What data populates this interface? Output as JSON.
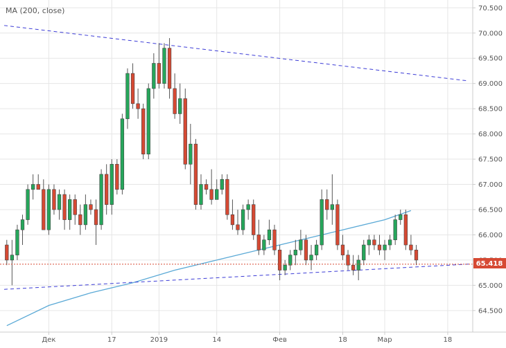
{
  "chart_data": {
    "type": "candlestick",
    "indicator_label": "MA (200, close)",
    "y_ticks": [
      "64.500",
      "65.000",
      "65.500",
      "66.000",
      "66.500",
      "67.000",
      "67.500",
      "68.000",
      "68.500",
      "69.000",
      "69.500",
      "70.000",
      "70.500"
    ],
    "ylim": [
      64.1,
      70.6
    ],
    "x_ticks": [
      {
        "label": "Дек",
        "bar": 8
      },
      {
        "label": "17",
        "bar": 20
      },
      {
        "label": "2019",
        "bar": 29
      },
      {
        "label": "14",
        "bar": 40
      },
      {
        "label": "Фев",
        "bar": 52
      },
      {
        "label": "18",
        "bar": 64
      },
      {
        "label": "Мар",
        "bar": 72
      },
      {
        "label": "18",
        "bar": 84
      }
    ],
    "last_price": "65.418",
    "last_price_value": 65.418,
    "colors": {
      "up": "#26a65b",
      "down": "#d64933",
      "ma": "#5aa9d6",
      "trend": "#3b3bd6",
      "price_line": "#d64933",
      "grid": "#e6e6e6"
    },
    "ohlc": [
      [
        65.8,
        65.9,
        65.4,
        65.5
      ],
      [
        65.5,
        65.9,
        65.0,
        65.6
      ],
      [
        65.6,
        66.2,
        65.5,
        66.1
      ],
      [
        66.1,
        66.4,
        65.8,
        66.3
      ],
      [
        66.3,
        67.0,
        66.2,
        66.9
      ],
      [
        66.9,
        67.2,
        66.7,
        67.0
      ],
      [
        67.0,
        67.2,
        66.9,
        66.9
      ],
      [
        66.9,
        67.1,
        66.1,
        66.1
      ],
      [
        66.1,
        67.0,
        66.0,
        66.9
      ],
      [
        66.9,
        67.0,
        66.4,
        66.5
      ],
      [
        66.5,
        66.9,
        66.3,
        66.8
      ],
      [
        66.8,
        66.9,
        66.1,
        66.3
      ],
      [
        66.3,
        66.8,
        66.1,
        66.7
      ],
      [
        66.7,
        66.8,
        66.2,
        66.4
      ],
      [
        66.4,
        66.6,
        66.0,
        66.2
      ],
      [
        66.2,
        66.8,
        66.1,
        66.6
      ],
      [
        66.6,
        66.7,
        66.4,
        66.5
      ],
      [
        66.5,
        66.7,
        65.8,
        66.2
      ],
      [
        66.2,
        67.3,
        66.1,
        67.2
      ],
      [
        67.2,
        67.4,
        66.4,
        66.6
      ],
      [
        66.6,
        67.5,
        66.4,
        67.4
      ],
      [
        67.4,
        67.5,
        66.8,
        66.9
      ],
      [
        66.9,
        68.4,
        66.8,
        68.3
      ],
      [
        68.3,
        69.3,
        68.1,
        69.2
      ],
      [
        69.2,
        69.4,
        68.5,
        68.6
      ],
      [
        68.6,
        68.9,
        68.3,
        68.5
      ],
      [
        68.5,
        68.6,
        67.5,
        67.6
      ],
      [
        67.6,
        69.0,
        67.5,
        68.9
      ],
      [
        68.9,
        69.6,
        68.7,
        69.4
      ],
      [
        69.4,
        69.8,
        68.9,
        69.0
      ],
      [
        69.0,
        69.8,
        68.9,
        69.7
      ],
      [
        69.7,
        69.9,
        68.7,
        68.9
      ],
      [
        68.9,
        69.2,
        68.3,
        68.4
      ],
      [
        68.4,
        69.0,
        68.2,
        68.7
      ],
      [
        68.7,
        68.9,
        67.3,
        67.4
      ],
      [
        67.4,
        68.2,
        67.0,
        67.8
      ],
      [
        67.8,
        67.9,
        66.5,
        66.6
      ],
      [
        66.6,
        67.2,
        66.5,
        67.0
      ],
      [
        67.0,
        67.1,
        66.8,
        66.9
      ],
      [
        66.9,
        67.3,
        66.6,
        66.7
      ],
      [
        66.7,
        67.1,
        66.7,
        66.9
      ],
      [
        66.9,
        67.2,
        66.8,
        67.1
      ],
      [
        67.1,
        67.2,
        66.3,
        66.4
      ],
      [
        66.4,
        66.7,
        66.1,
        66.2
      ],
      [
        66.2,
        66.5,
        66.0,
        66.1
      ],
      [
        66.1,
        66.6,
        66.0,
        66.5
      ],
      [
        66.5,
        66.7,
        66.3,
        66.6
      ],
      [
        66.6,
        66.7,
        65.9,
        66.0
      ],
      [
        66.0,
        66.3,
        65.6,
        65.7
      ],
      [
        65.7,
        66.0,
        65.6,
        65.9
      ],
      [
        65.9,
        66.3,
        65.8,
        66.1
      ],
      [
        66.1,
        66.2,
        65.6,
        65.7
      ],
      [
        65.7,
        65.8,
        65.1,
        65.3
      ],
      [
        65.3,
        65.5,
        65.2,
        65.4
      ],
      [
        65.4,
        65.7,
        65.3,
        65.6
      ],
      [
        65.6,
        65.9,
        65.4,
        65.7
      ],
      [
        65.7,
        66.1,
        65.6,
        65.9
      ],
      [
        65.9,
        66.0,
        65.4,
        65.5
      ],
      [
        65.5,
        65.8,
        65.3,
        65.6
      ],
      [
        65.6,
        65.9,
        65.5,
        65.8
      ],
      [
        65.8,
        66.9,
        65.7,
        66.7
      ],
      [
        66.7,
        66.9,
        66.3,
        66.5
      ],
      [
        66.5,
        67.2,
        66.2,
        66.6
      ],
      [
        66.6,
        66.7,
        65.7,
        65.8
      ],
      [
        65.8,
        66.0,
        65.5,
        65.6
      ],
      [
        65.6,
        65.7,
        65.3,
        65.4
      ],
      [
        65.4,
        65.6,
        65.2,
        65.3
      ],
      [
        65.3,
        65.6,
        65.1,
        65.5
      ],
      [
        65.5,
        65.9,
        65.4,
        65.8
      ],
      [
        65.8,
        66.0,
        65.6,
        65.9
      ],
      [
        65.9,
        66.0,
        65.7,
        65.8
      ],
      [
        65.8,
        66.0,
        65.6,
        65.7
      ],
      [
        65.7,
        65.9,
        65.5,
        65.8
      ],
      [
        65.8,
        66.0,
        65.7,
        65.9
      ],
      [
        65.9,
        66.4,
        65.8,
        66.3
      ],
      [
        66.3,
        66.5,
        66.2,
        66.4
      ],
      [
        66.4,
        66.5,
        65.7,
        65.8
      ],
      [
        65.8,
        66.0,
        65.6,
        65.7
      ],
      [
        65.7,
        65.8,
        65.4,
        65.5
      ]
    ],
    "ma200": [
      [
        0,
        64.2
      ],
      [
        8,
        64.6
      ],
      [
        16,
        64.85
      ],
      [
        24,
        65.05
      ],
      [
        32,
        65.3
      ],
      [
        40,
        65.5
      ],
      [
        48,
        65.7
      ],
      [
        56,
        65.9
      ],
      [
        64,
        66.1
      ],
      [
        72,
        66.3
      ],
      [
        77,
        66.48
      ]
    ],
    "trendlines": [
      {
        "from": [
          0,
          70.15
        ],
        "to": [
          88,
          69.05
        ]
      },
      {
        "from": [
          0,
          64.92
        ],
        "to": [
          88,
          65.42
        ]
      }
    ]
  }
}
